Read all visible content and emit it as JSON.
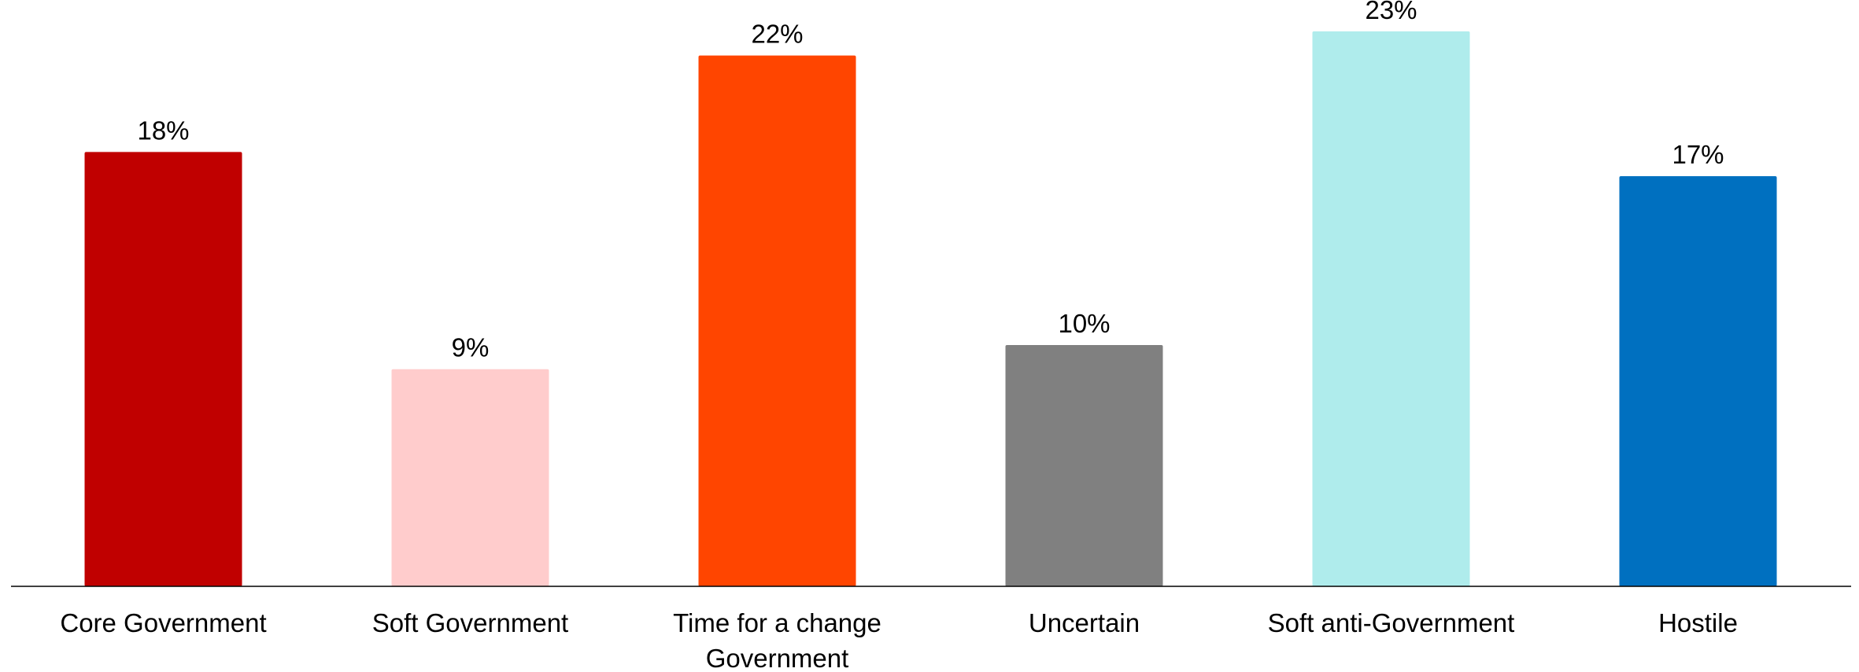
{
  "chart_data": {
    "type": "bar",
    "title": "",
    "xlabel": "",
    "ylabel": "",
    "categories": [
      [
        "Core Government"
      ],
      [
        "Soft Government"
      ],
      [
        "Time for a change",
        "Government"
      ],
      [
        "Uncertain"
      ],
      [
        "Soft anti-Government"
      ],
      [
        "Hostile"
      ]
    ],
    "values": [
      18,
      9,
      22,
      10,
      23,
      17
    ],
    "data_labels": [
      "18%",
      "9%",
      "22%",
      "10%",
      "23%",
      "17%"
    ],
    "colors": [
      "#C00000",
      "#FFCCCC",
      "#FF4500",
      "#808080",
      "#AFECEC",
      "#0070C0"
    ],
    "ylim": [
      0,
      24.3
    ],
    "grid": false,
    "legend": "none"
  }
}
